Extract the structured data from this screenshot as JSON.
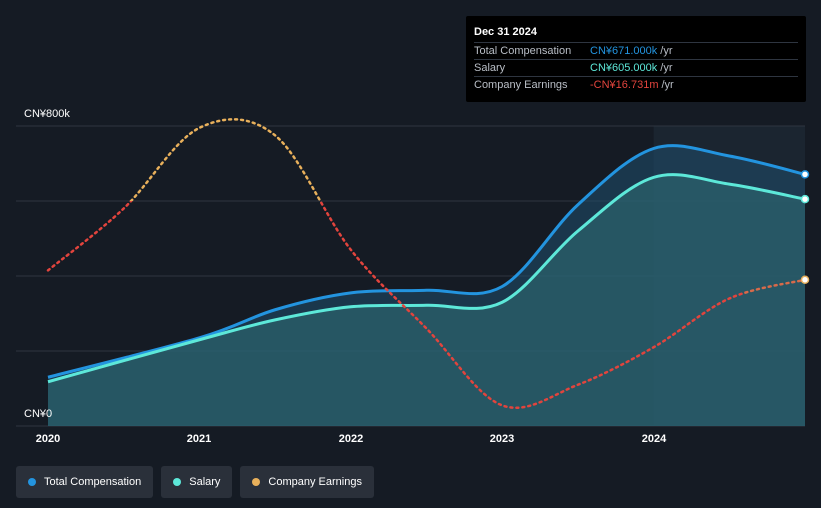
{
  "colors": {
    "background": "#151b24",
    "forecast_bg": "#1b2530",
    "total_compensation": "#2394df",
    "salary": "#5de8d9",
    "earnings_positive": "#e8b05b",
    "earnings_negative": "#e2443d",
    "gridline": "#2e3540"
  },
  "tooltip": {
    "date": "Dec 31 2024",
    "rows": [
      {
        "label": "Total Compensation",
        "value": "CN¥671.000k",
        "unit": "/yr",
        "color": "#2394df"
      },
      {
        "label": "Salary",
        "value": "CN¥605.000k",
        "unit": "/yr",
        "color": "#5de8d9"
      },
      {
        "label": "Company Earnings",
        "value": "-CN¥16.731m",
        "unit": "/yr",
        "color": "#e2443d"
      }
    ]
  },
  "legend": [
    {
      "label": "Total Compensation",
      "color": "#2394df"
    },
    {
      "label": "Salary",
      "color": "#5de8d9"
    },
    {
      "label": "Company Earnings",
      "color": "#e8b05b"
    }
  ],
  "chart_data": {
    "type": "line",
    "y_axis_labels": [
      "CN¥800k",
      "CN¥0"
    ],
    "ylim": [
      0,
      800
    ],
    "xlim": [
      2020,
      2025.0
    ],
    "x_ticks": [
      "2020",
      "2021",
      "2022",
      "2023",
      "2024"
    ],
    "grid": true,
    "legend_position": "bottom-left",
    "series": [
      {
        "name": "Total Compensation",
        "unit": "CN¥k",
        "x": [
          2020.0,
          2021.0,
          2021.5,
          2022.0,
          2022.5,
          2023.0,
          2023.5,
          2024.0,
          2024.5,
          2025.0
        ],
        "values": [
          130,
          235,
          310,
          355,
          362,
          372,
          590,
          740,
          720,
          671
        ]
      },
      {
        "name": "Salary",
        "unit": "CN¥k",
        "x": [
          2020.0,
          2021.0,
          2021.5,
          2022.0,
          2022.5,
          2023.0,
          2023.5,
          2024.0,
          2024.5,
          2025.0
        ],
        "values": [
          118,
          230,
          283,
          318,
          322,
          330,
          520,
          663,
          645,
          605
        ]
      },
      {
        "name": "Company Earnings",
        "x": [
          2020.0,
          2020.5,
          2021.0,
          2021.5,
          2022.0,
          2022.5,
          2023.0,
          2023.5,
          2024.0,
          2024.5,
          2025.0
        ],
        "values": [
          415,
          580,
          795,
          775,
          470,
          260,
          55,
          110,
          210,
          340,
          390
        ]
      }
    ]
  }
}
